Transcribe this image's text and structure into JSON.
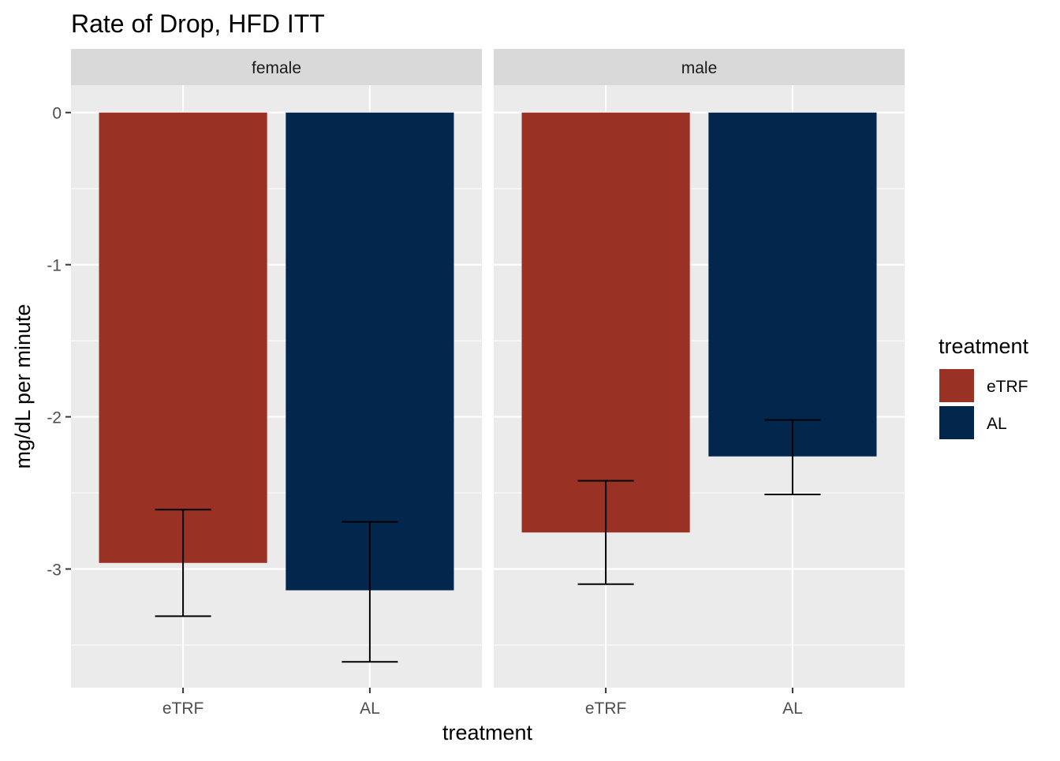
{
  "chart_data": {
    "type": "bar",
    "title": "Rate of Drop, HFD ITT",
    "xlabel": "treatment",
    "ylabel": "mg/dL per minute",
    "ylim": [
      -3.78,
      0.18
    ],
    "yticks": [
      0,
      -1,
      -2,
      -3
    ],
    "grid": true,
    "categories": [
      "eTRF",
      "AL"
    ],
    "facets": [
      {
        "label": "female",
        "bars": [
          {
            "category": "eTRF",
            "value": -2.96,
            "err_low": -3.31,
            "err_high": -2.61
          },
          {
            "category": "AL",
            "value": -3.14,
            "err_low": -3.61,
            "err_high": -2.69
          }
        ]
      },
      {
        "label": "male",
        "bars": [
          {
            "category": "eTRF",
            "value": -2.76,
            "err_low": -3.1,
            "err_high": -2.42
          },
          {
            "category": "AL",
            "value": -2.26,
            "err_low": -2.51,
            "err_high": -2.02
          }
        ]
      }
    ],
    "legend": {
      "title": "treatment",
      "placement": "right",
      "items": [
        {
          "label": "eTRF",
          "color": "#993124"
        },
        {
          "label": "AL",
          "color": "#03274C"
        }
      ]
    },
    "colors": {
      "eTRF": "#993124",
      "AL": "#03274C"
    }
  }
}
